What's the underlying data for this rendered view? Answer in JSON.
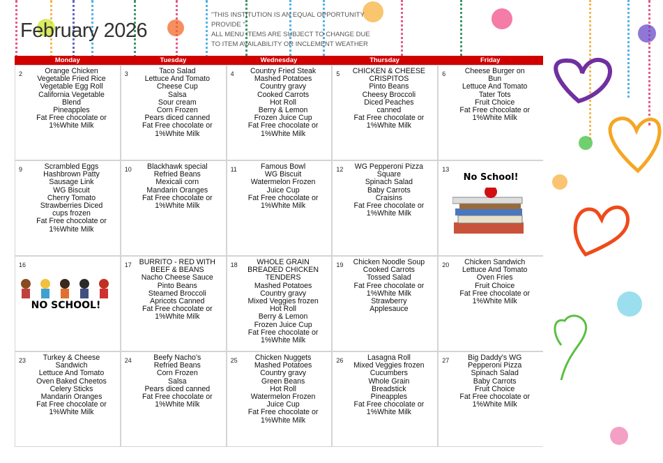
{
  "title": "February 2026",
  "notice": [
    "\"THIS INSTITUTION IS AN EQUAL OPPORTUNITY PROVIDE \"",
    "ALL MENU ITEMS ARE SUBJECT TO CHANGE DUE TO ITEM AVAILABILITY OR INCLEMENT WEATHER"
  ],
  "colors": {
    "header": "#d10000"
  },
  "days": [
    "Monday",
    "Tuesday",
    "Wednesday",
    "Thursday",
    "Friday"
  ],
  "weeks": [
    [
      {
        "day": "2",
        "items": [
          "Orange Chicken",
          "Vegetable Fried Rice",
          "Vegetable Egg Roll",
          "California Vegetable",
          "Blend",
          "Pineapples",
          "Fat Free chocolate or",
          "1%White Milk"
        ]
      },
      {
        "day": "3",
        "items": [
          "Taco Salad",
          "Lettuce And Tomato",
          "Cheese Cup",
          "Salsa",
          "Sour cream",
          "Corn Frozen",
          "Pears diced canned",
          "Fat Free chocolate or",
          "1%White Milk"
        ]
      },
      {
        "day": "4",
        "items": [
          "Country Fried Steak",
          "Mashed Potatoes",
          "Country gravy",
          "Cooked Carrots",
          "Hot Roll",
          "Berry & Lemon",
          "Frozen Juice Cup",
          "Fat Free chocolate or",
          "1%White Milk"
        ]
      },
      {
        "day": "5",
        "items": [
          "CHICKEN & CHEESE",
          "CRISPITOS",
          "Pinto Beans",
          "Cheesy Broccoli",
          "Diced Peaches",
          "canned",
          "Fat Free chocolate or",
          "1%White Milk"
        ]
      },
      {
        "day": "6",
        "items": [
          "Cheese Burger on",
          "Bun",
          "Lettuce And Tomato",
          "Tater Tots",
          "Fruit Choice",
          "Fat Free chocolate or",
          "1%White Milk"
        ]
      }
    ],
    [
      {
        "day": "9",
        "items": [
          "Scrambled Eggs",
          "Hashbrown Patty",
          "Sausage Link",
          "WG Biscuit",
          "Cherry Tomato",
          "Strawberries Diced",
          "cups frozen",
          "Fat Free chocolate or",
          "1%White Milk"
        ]
      },
      {
        "day": "10",
        "items": [
          "Blackhawk special",
          "Refried Beans",
          "Mexicali corn",
          "Mandarin Oranges",
          "Fat Free chocolate or",
          "1%White Milk"
        ]
      },
      {
        "day": "11",
        "items": [
          "Famous Bowl",
          "WG Biscuit",
          "Watermelon Frozen",
          "Juice Cup",
          "Fat Free chocolate or",
          "1%White Milk"
        ]
      },
      {
        "day": "12",
        "items": [
          "WG Pepperoni Pizza",
          "Square",
          "Spinach Salad",
          "Baby Carrots",
          "Craisins",
          "Fat Free chocolate or",
          "1%White Milk"
        ]
      },
      {
        "day": "13",
        "items": [],
        "no_school": "No School!"
      }
    ],
    [
      {
        "day": "16",
        "items": [],
        "no_school": "NO SCHOOL!"
      },
      {
        "day": "17",
        "items": [
          "BURRITO - RED WITH",
          "BEEF & BEANS",
          "Nacho Cheese Sauce",
          "Pinto Beans",
          "Steamed Broccoli",
          "Apricots Canned",
          "Fat Free chocolate or",
          "1%White Milk"
        ]
      },
      {
        "day": "18",
        "items": [
          "WHOLE GRAIN",
          "BREADED CHICKEN",
          "TENDERS",
          "Mashed Potatoes",
          "Country gravy",
          "Mixed Veggies frozen",
          "Hot Roll",
          "Berry & Lemon",
          "Frozen Juice Cup",
          "Fat Free chocolate or",
          "1%White Milk"
        ]
      },
      {
        "day": "19",
        "items": [
          "Chicken Noodle Soup",
          "Cooked Carrots",
          "Tossed Salad",
          "Fat Free chocolate or",
          "1%White Milk",
          "Strawberry",
          "Applesauce"
        ]
      },
      {
        "day": "20",
        "items": [
          "Chicken Sandwich",
          "Lettuce And Tomato",
          "Oven Fries",
          "Fruit Choice",
          "Fat Free chocolate or",
          "1%White Milk"
        ]
      }
    ],
    [
      {
        "day": "23",
        "items": [
          "Turkey & Cheese",
          "Sandwich",
          "Lettuce And Tomato",
          "Oven Baked Cheetos",
          "Celery Sticks",
          "Mandarin Oranges",
          "Fat Free chocolate or",
          "1%White Milk"
        ]
      },
      {
        "day": "24",
        "items": [
          "Beefy Nacho's",
          "Refried Beans",
          "Corn Frozen",
          "Salsa",
          "Pears diced canned",
          "Fat Free chocolate or",
          "1%White Milk"
        ]
      },
      {
        "day": "25",
        "items": [
          "Chicken Nuggets",
          "Mashed Potatoes",
          "Country gravy",
          "Green Beans",
          "Hot Roll",
          "Watermelon Frozen",
          "Juice Cup",
          "Fat Free chocolate or",
          "1%White Milk"
        ]
      },
      {
        "day": "26",
        "items": [
          "Lasagna Roll",
          "Mixed Veggies frozen",
          "Cucumbers",
          "Whole Grain",
          "Breadstick",
          "Pineapples",
          "Fat Free chocolate or",
          "1%White Milk"
        ]
      },
      {
        "day": "27",
        "items": [
          "Big Daddy's WG",
          "Pepperoni Pizza",
          "Spinach Salad",
          "Baby Carrots",
          "Fruit Choice",
          "Fat Free chocolate or",
          "1%White Milk"
        ]
      }
    ]
  ]
}
